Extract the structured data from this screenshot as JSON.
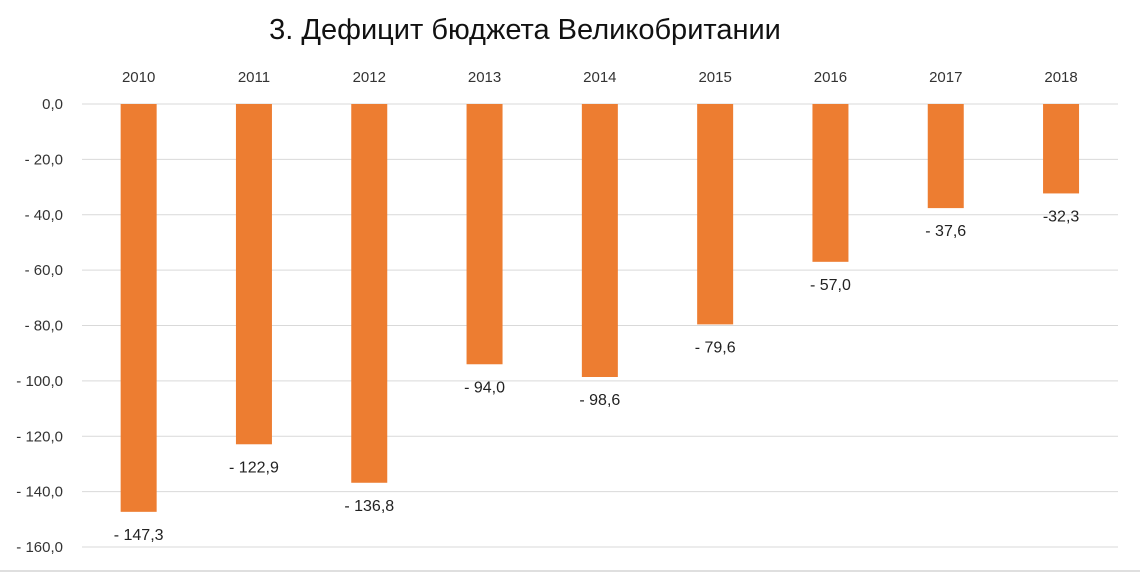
{
  "chart_data": {
    "type": "bar",
    "title": "3. Дефицит бюджета Великобритании",
    "categories": [
      "2010",
      "2011",
      "2012",
      "2013",
      "2014",
      "2015",
      "2016",
      "2017",
      "2018"
    ],
    "values": [
      -147.3,
      -122.9,
      -136.8,
      -94.0,
      -98.6,
      -79.6,
      -57.0,
      -37.6,
      -32.3
    ],
    "data_labels": [
      "- 147,3",
      "- 122,9",
      "- 136,8",
      "- 94,0",
      "- 98,6",
      "- 79,6",
      "- 57,0",
      "- 37,6",
      "-32,3"
    ],
    "y_ticks": [
      0,
      -20,
      -40,
      -60,
      -80,
      -100,
      -120,
      -140,
      -160
    ],
    "y_tick_labels": [
      "0,0",
      "- 20,0",
      "- 40,0",
      "- 60,0",
      "- 80,0",
      "- 100,0",
      "- 120,0",
      "- 140,0",
      "- 160,0"
    ],
    "ylim": [
      -160,
      0
    ],
    "xlabel": "",
    "ylabel": "",
    "x_axis_position": "top",
    "grid": true,
    "legend": "none",
    "colors": {
      "bar": "#ED7D31",
      "grid": "#D9D9D9",
      "text": "#333333"
    }
  }
}
